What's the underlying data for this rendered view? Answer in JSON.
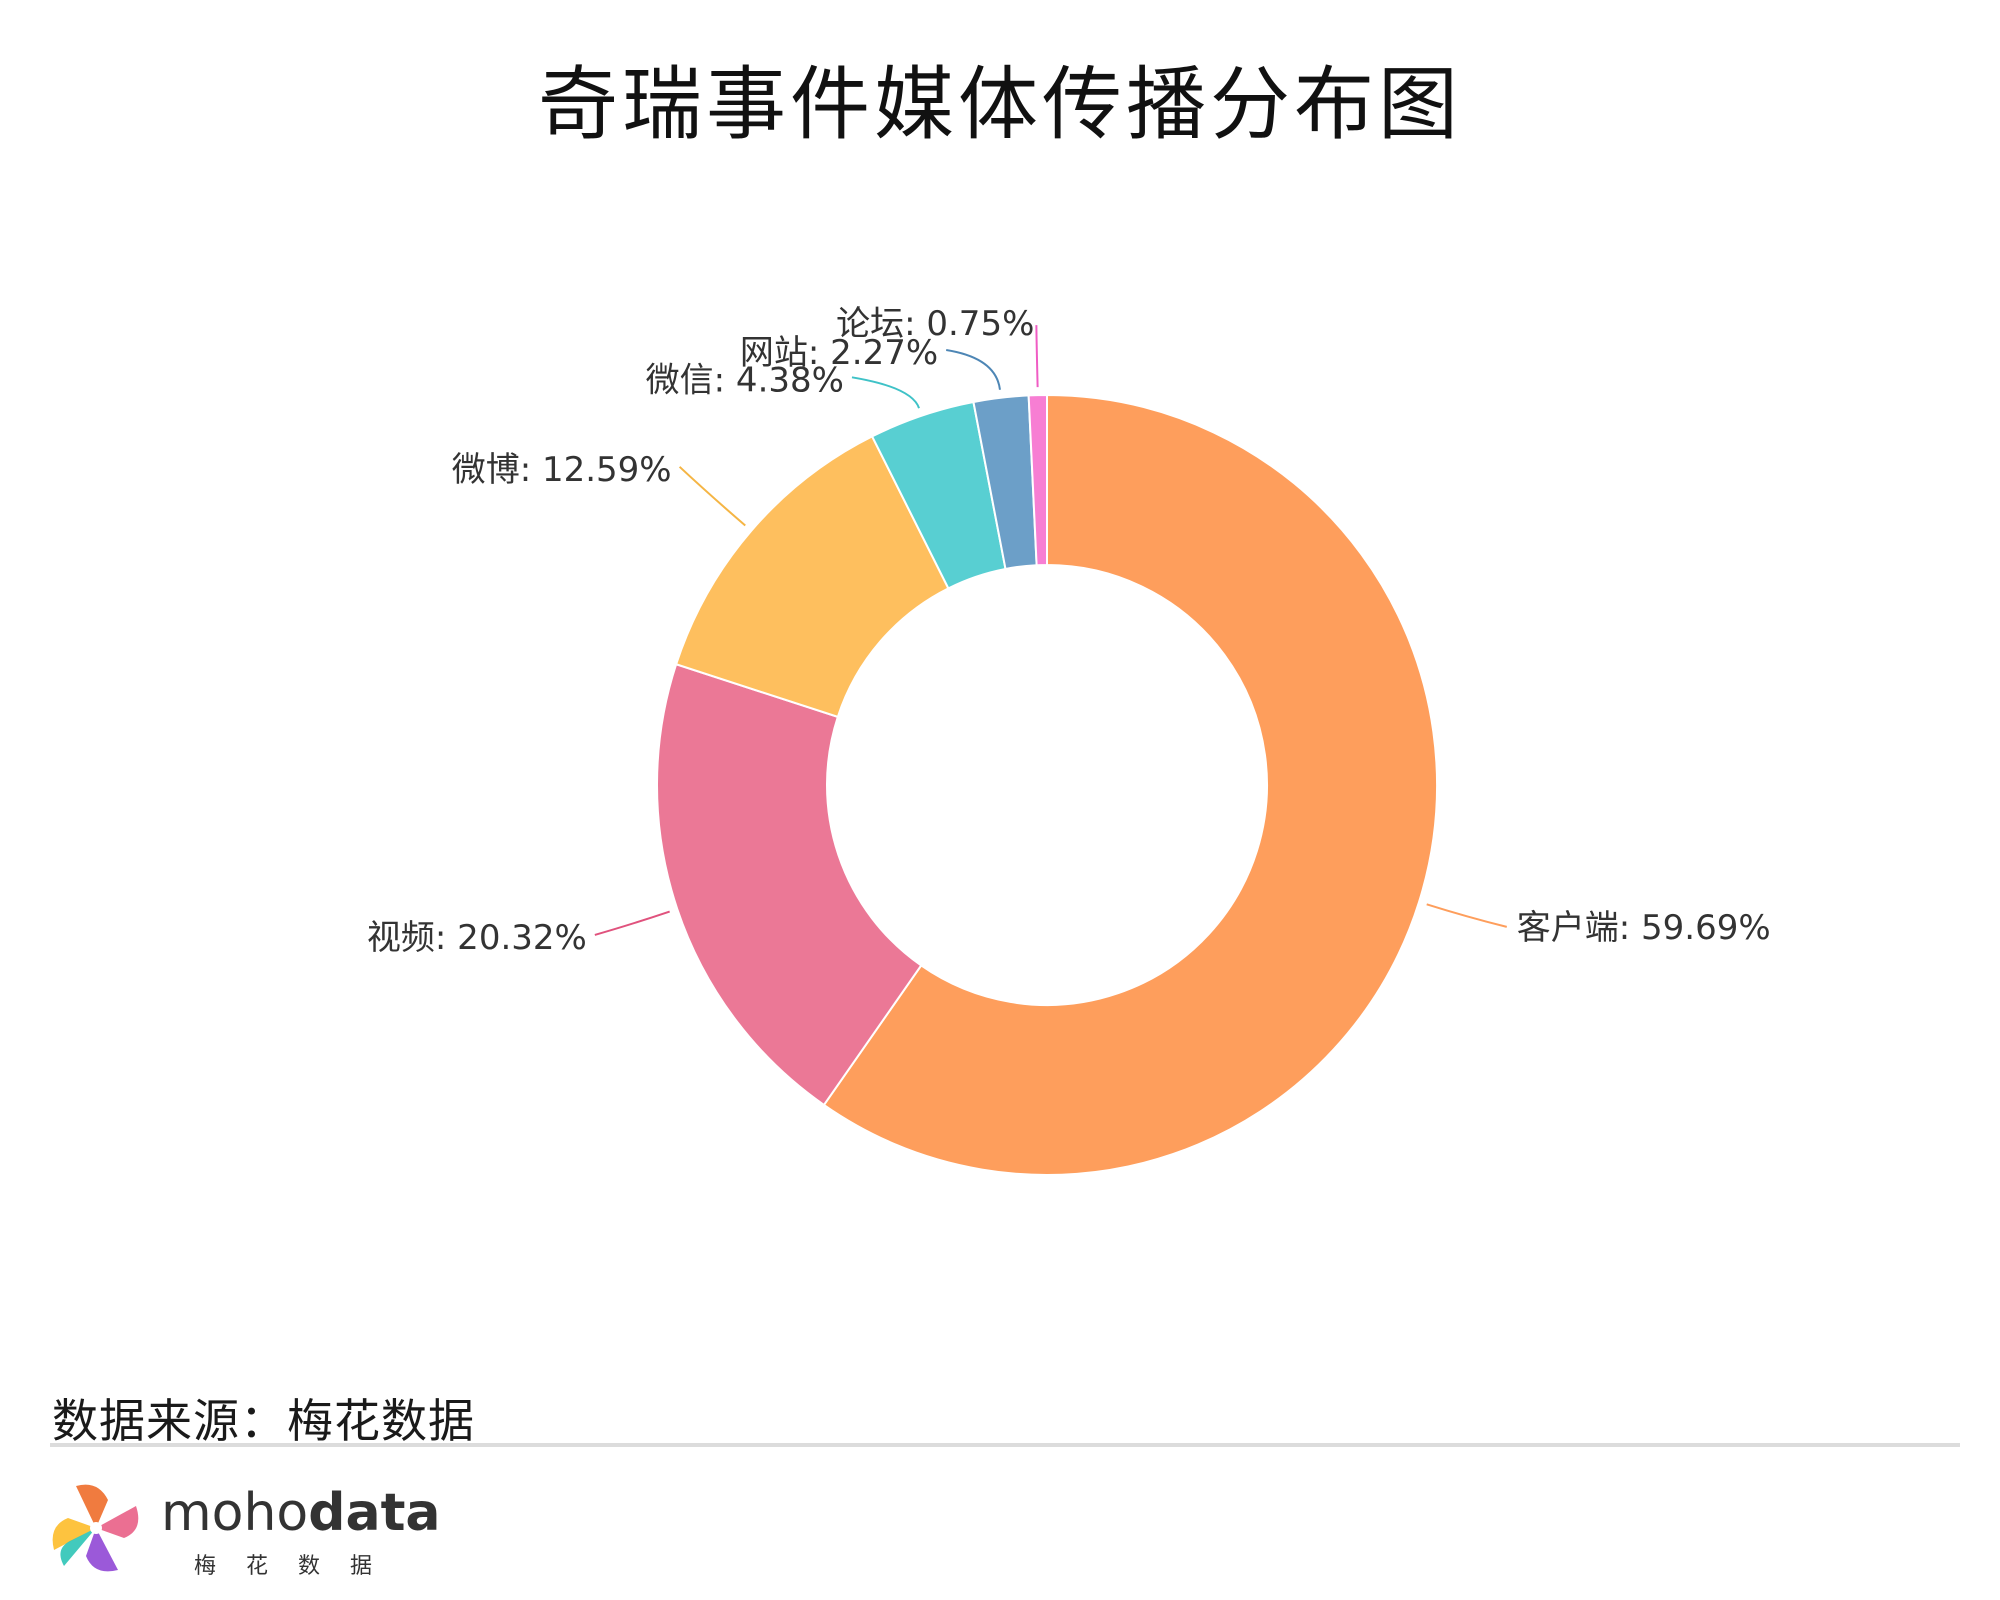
{
  "title": "奇瑞事件媒体传播分布图",
  "source": "数据来源：梅花数据",
  "logo": {
    "word_light": "moho",
    "word_bold": "data",
    "sub": "梅花数据"
  },
  "chart_data": {
    "type": "pie",
    "donut": true,
    "title": "奇瑞事件媒体传播分布图",
    "slices": [
      {
        "label": "客户端",
        "value": 59.69,
        "display": "客户端: 59.69%",
        "color": "#FE9E5C"
      },
      {
        "label": "视频",
        "value": 20.32,
        "display": "视频: 20.32%",
        "color": "#EB7896"
      },
      {
        "label": "微博",
        "value": 12.59,
        "display": "微博: 12.59%",
        "color": "#FEBF5E"
      },
      {
        "label": "微信",
        "value": 4.38,
        "display": "微信: 4.38%",
        "color": "#58CFD2"
      },
      {
        "label": "网站",
        "value": 2.27,
        "display": "网站: 2.27%",
        "color": "#6C9FC8"
      },
      {
        "label": "论坛",
        "value": 0.75,
        "display": "论坛: 0.75%",
        "color": "#F77ED3"
      }
    ],
    "label_colors": {
      "客户端": "#FE9E5C",
      "视频": "#E0527D",
      "微博": "#F5B544",
      "微信": "#3FC2C7",
      "网站": "#4D86B5",
      "论坛": "#F05CC4"
    }
  }
}
